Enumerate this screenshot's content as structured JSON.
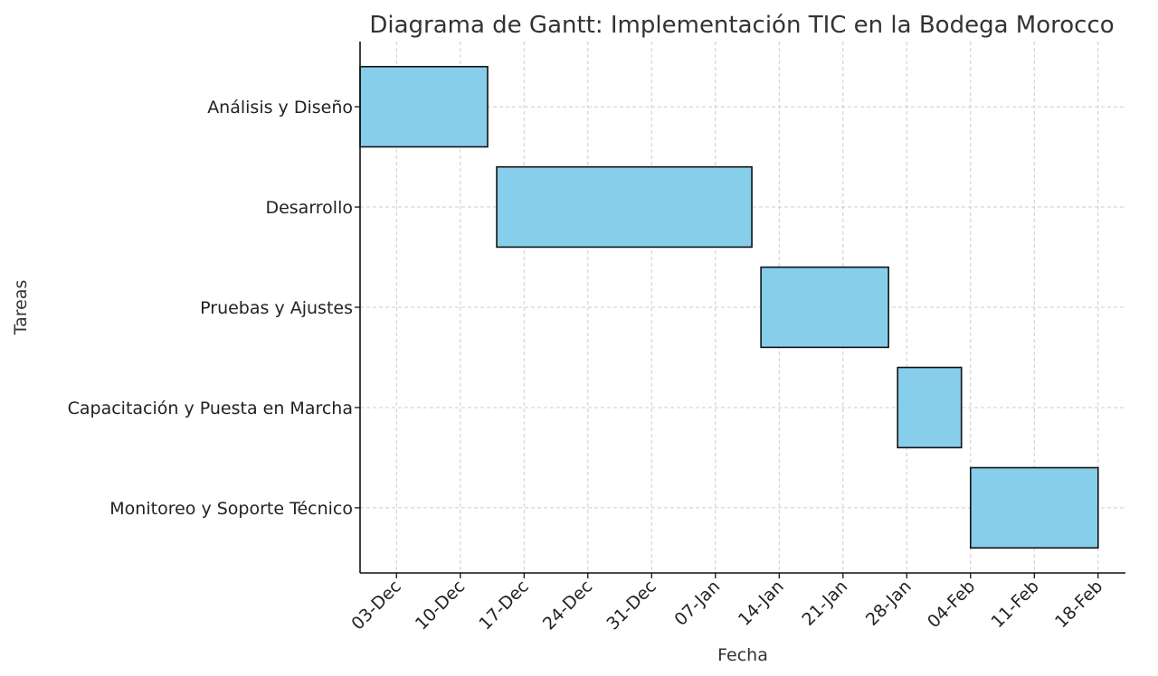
{
  "chart_data": {
    "type": "gantt",
    "title": "Diagrama de Gantt: Implementación TIC en la Bodega Morocco",
    "xlabel": "Fecha",
    "ylabel": "Tareas",
    "x_tick_labels": [
      "03-Dec",
      "10-Dec",
      "17-Dec",
      "24-Dec",
      "31-Dec",
      "07-Jan",
      "14-Jan",
      "21-Jan",
      "28-Jan",
      "04-Feb",
      "11-Feb",
      "18-Feb"
    ],
    "x_ticks": [
      "2023-12-03",
      "2023-12-10",
      "2023-12-17",
      "2023-12-24",
      "2023-12-31",
      "2024-01-07",
      "2024-01-14",
      "2024-01-21",
      "2024-01-28",
      "2024-02-04",
      "2024-02-11",
      "2024-02-18"
    ],
    "xlim": [
      "2023-11-29",
      "2024-02-21"
    ],
    "grid": true,
    "bar_color": "#87CEEB",
    "tasks": [
      {
        "name": "Análisis y Diseño",
        "start": "2023-11-29",
        "end": "2023-12-13"
      },
      {
        "name": "Desarrollo",
        "start": "2023-12-14",
        "end": "2024-01-11"
      },
      {
        "name": "Pruebas y Ajustes",
        "start": "2024-01-12",
        "end": "2024-01-26"
      },
      {
        "name": "Capacitación y Puesta en Marcha",
        "start": "2024-01-27",
        "end": "2024-02-03"
      },
      {
        "name": "Monitoreo y Soporte Técnico",
        "start": "2024-02-04",
        "end": "2024-02-18"
      }
    ]
  }
}
